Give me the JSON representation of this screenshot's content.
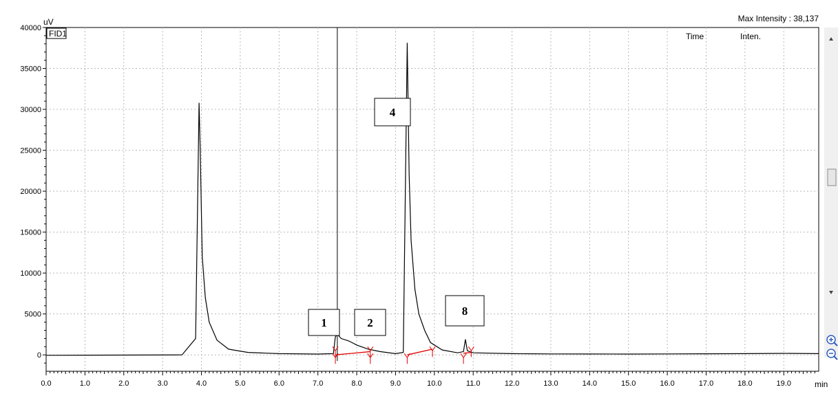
{
  "header": {
    "y_unit": "uV",
    "max_intensity": "Max Intensity :  38,137",
    "detector": "FID1",
    "col_time": "Time",
    "col_inten": "Inten."
  },
  "chart_data": {
    "type": "line",
    "xlabel": "min",
    "ylabel": "uV",
    "xlim": [
      0.0,
      19.9
    ],
    "ylim": [
      -2000,
      40000
    ],
    "grid": true,
    "x_ticks": [
      "0.0",
      "1.0",
      "2.0",
      "3.0",
      "4.0",
      "5.0",
      "6.0",
      "7.0",
      "8.0",
      "9.0",
      "10.0",
      "11.0",
      "12.0",
      "13.0",
      "14.0",
      "15.0",
      "16.0",
      "17.0",
      "18.0",
      "19.0"
    ],
    "y_ticks": [
      "40000",
      "35000",
      "30000",
      "25000",
      "20000",
      "15000",
      "10000",
      "5000",
      "0"
    ],
    "cursor_x": 7.5,
    "series": [
      {
        "color": "#000000",
        "x": [
          0.0,
          3.5,
          3.85,
          3.94,
          3.97,
          4.02,
          4.1,
          4.2,
          4.4,
          4.7,
          5.2,
          6.0,
          7.0,
          7.4,
          7.45,
          7.5,
          7.6,
          7.8,
          8.0,
          8.3,
          8.6,
          9.0,
          9.2,
          9.3,
          9.35,
          9.4,
          9.5,
          9.6,
          9.75,
          9.9,
          10.2,
          10.6,
          10.75,
          10.8,
          10.85,
          11.0,
          12.0,
          13.0,
          14.0,
          15.0,
          16.0,
          17.0,
          18.0,
          19.0,
          19.9
        ],
        "y": [
          -50,
          0,
          2000,
          30800,
          25000,
          12000,
          7000,
          4000,
          1800,
          700,
          300,
          150,
          100,
          150,
          2200,
          2500,
          2000,
          1700,
          1200,
          700,
          400,
          150,
          300,
          38137,
          22000,
          14000,
          8000,
          5000,
          3000,
          1500,
          600,
          250,
          400,
          1900,
          500,
          250,
          150,
          120,
          110,
          100,
          120,
          130,
          150,
          180,
          150
        ]
      }
    ],
    "integration_segments": [
      {
        "x": [
          7.45,
          8.35
        ],
        "y": [
          0,
          400
        ]
      },
      {
        "x": [
          9.3,
          9.95
        ],
        "y": [
          0,
          700
        ]
      },
      {
        "x": [
          10.75,
          10.95
        ],
        "y": [
          200,
          300
        ]
      }
    ],
    "peak_marks": [
      7.45,
      7.45,
      8.35,
      8.35,
      9.3,
      9.95,
      10.75,
      10.95
    ],
    "peak_labels": [
      {
        "label": "1",
        "x": 7.45
      },
      {
        "label": "2",
        "x": 8.35
      },
      {
        "label": "4",
        "x": 9.3
      },
      {
        "label": "8",
        "x": 10.8
      }
    ]
  }
}
